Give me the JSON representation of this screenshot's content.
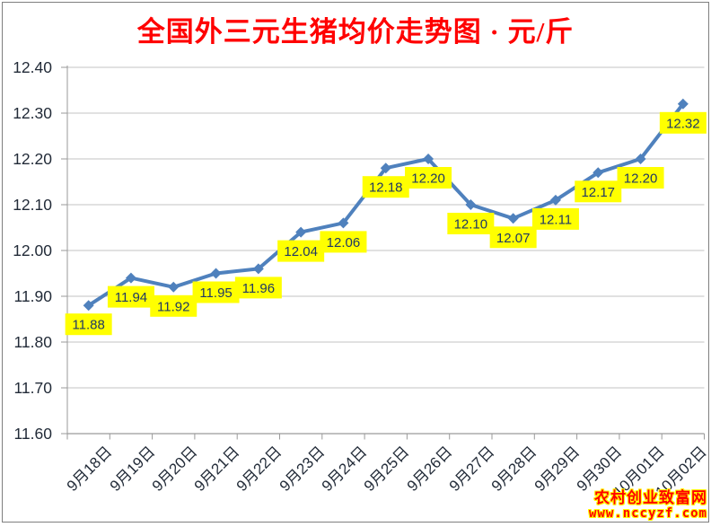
{
  "chart_data": {
    "type": "line",
    "title": "全国外三元生猪均价走势图 · 元/斤",
    "categories": [
      "9月18日",
      "9月19日",
      "9月20日",
      "9月21日",
      "9月22日",
      "9月23日",
      "9月24日",
      "9月25日",
      "9月26日",
      "9月27日",
      "9月28日",
      "9月29日",
      "9月30日",
      "10月01日",
      "10月02日"
    ],
    "values": [
      11.88,
      11.94,
      11.92,
      11.95,
      11.96,
      12.04,
      12.06,
      12.18,
      12.2,
      12.1,
      12.07,
      12.11,
      12.17,
      12.2,
      12.32
    ],
    "ylim": [
      11.6,
      12.4
    ],
    "ytick_step": 0.1,
    "ytick_labels": [
      "12.40",
      "12.30",
      "12.20",
      "12.10",
      "12.00",
      "11.90",
      "11.80",
      "11.70",
      "11.60"
    ],
    "grid": true,
    "legend": "none",
    "marker": "diamond",
    "line_color": "#4F81BD",
    "data_labels": {
      "show": true,
      "bg": "#FFFF00",
      "text_color": "#1F3864"
    }
  },
  "watermark": {
    "site_name": "农村创业致富网",
    "site_url": "www.nccyzf.com",
    "text_color": "#FF0000",
    "outline_color": "#FFFF00"
  },
  "colors": {
    "title": "#FF0000",
    "axis_text": "#222B38",
    "gridline": "#C3C3C3",
    "axis_line": "#9A9A9A",
    "border": "#7F7F7F",
    "background": "#FFFFFF"
  }
}
